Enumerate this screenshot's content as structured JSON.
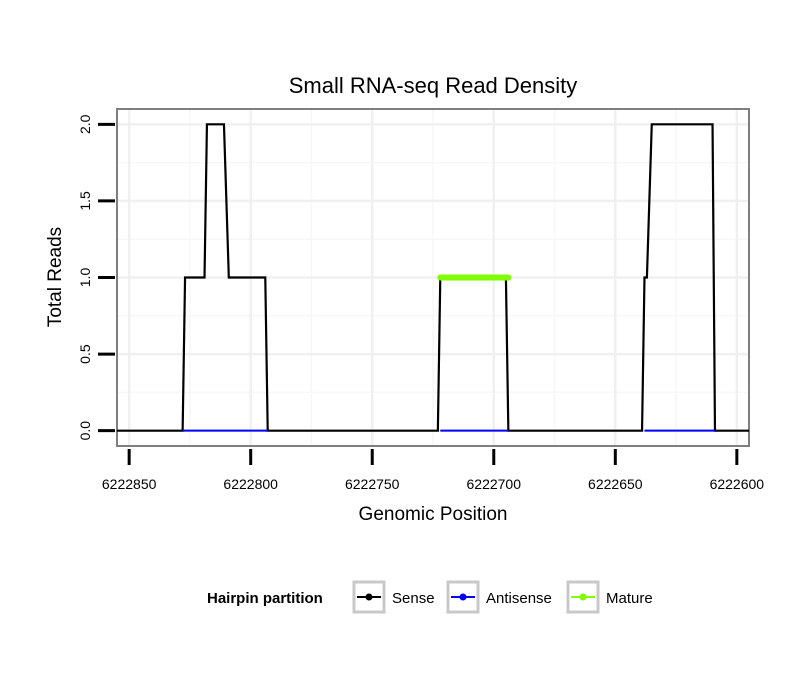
{
  "chart_data": {
    "type": "line",
    "title": "Small RNA-seq Read Density",
    "xlabel": "Genomic Position",
    "ylabel": "Total Reads",
    "xlim": [
      6222855,
      6222595
    ],
    "x_reversed": true,
    "ylim": [
      -0.1,
      2.1
    ],
    "x_ticks": [
      {
        "value": 6222850,
        "label": "6222850"
      },
      {
        "value": 6222800,
        "label": "6222800"
      },
      {
        "value": 6222750,
        "label": "6222750"
      },
      {
        "value": 6222700,
        "label": "6222700"
      },
      {
        "value": 6222650,
        "label": "6222650"
      },
      {
        "value": 6222600,
        "label": "6222600"
      }
    ],
    "y_ticks": [
      {
        "value": 0,
        "label": "0.0"
      },
      {
        "value": 0.5,
        "label": "0.5"
      },
      {
        "value": 1,
        "label": "1.0"
      },
      {
        "value": 1.5,
        "label": "1.5"
      },
      {
        "value": 2,
        "label": "2.0"
      }
    ],
    "grid": true,
    "legend": {
      "position": "bottom",
      "title": "Hairpin partition",
      "entries": [
        {
          "name": "Sense",
          "color": "#000000"
        },
        {
          "name": "Antisense",
          "color": "#0000ff"
        },
        {
          "name": "Mature",
          "color": "#7fff00"
        }
      ]
    },
    "series": [
      {
        "name": "Sense",
        "color": "#000000",
        "x": [
          6222855,
          6222828,
          6222827,
          6222819,
          6222818,
          6222811,
          6222809,
          6222794,
          6222793,
          6222723,
          6222722,
          6222695,
          6222694,
          6222639,
          6222638,
          6222637,
          6222635,
          6222610,
          6222609,
          6222595
        ],
        "y": [
          0,
          0,
          1,
          1,
          2,
          2,
          1,
          1,
          0,
          0,
          1,
          1,
          0,
          0,
          1,
          1,
          2,
          2,
          0,
          0
        ]
      },
      {
        "name": "Antisense",
        "color": "#0000ff",
        "x": [
          6222828,
          6222793,
          6222793,
          6222722,
          6222722,
          6222694,
          6222694,
          6222638,
          6222638,
          6222609
        ],
        "y": [
          0,
          0,
          null,
          0,
          0,
          0,
          null,
          0,
          0,
          0
        ]
      },
      {
        "name": "Mature",
        "color": "#7fff00",
        "x": [
          6222722,
          6222694
        ],
        "y": [
          1,
          1
        ]
      }
    ]
  }
}
